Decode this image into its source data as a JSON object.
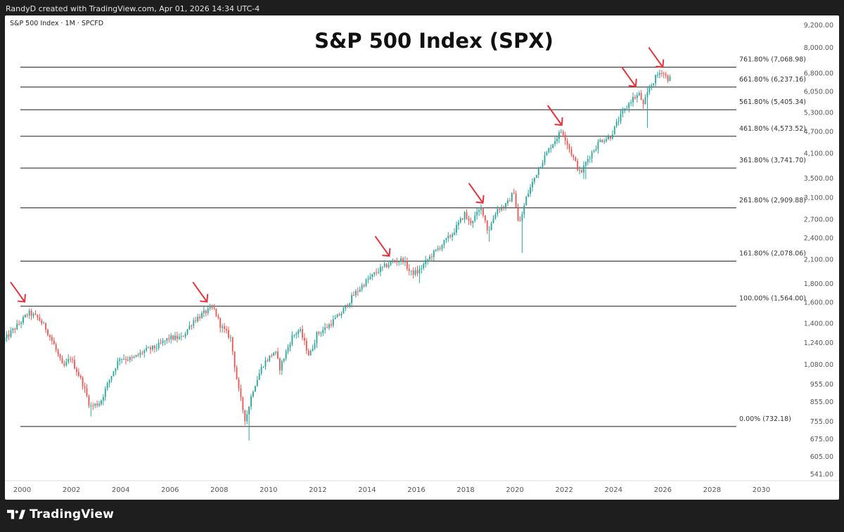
{
  "header": {
    "attribution": "RandyD created with TradingView.com, Apr 01, 2026 14:34 UTC-4"
  },
  "footer": {
    "brand": "TradingView",
    "logo_icon": "tradingview-logo-icon"
  },
  "colors": {
    "up": "#26a69a",
    "down": "#ef5350",
    "arrow": "#e8313a",
    "level_line": "#1a1a1a",
    "text": "#333333"
  },
  "chart_data": {
    "type": "candlestick",
    "title": "S&P 500 Index (SPX)",
    "symbol_legend": "S&P 500 Index · 1M · SPCFD",
    "scale": "log",
    "ylim": [
      520,
      9800
    ],
    "xlim": [
      1999.3,
      2031.3
    ],
    "y_ticks": [
      {
        "label": "9,200.00",
        "value": 9200
      },
      {
        "label": "8,000.00",
        "value": 8000
      },
      {
        "label": "6,800.00",
        "value": 6800
      },
      {
        "label": "6,050.00",
        "value": 6050
      },
      {
        "label": "5,300.00",
        "value": 5300
      },
      {
        "label": "4,700.00",
        "value": 4700
      },
      {
        "label": "4,100.00",
        "value": 4100
      },
      {
        "label": "3,500.00",
        "value": 3500
      },
      {
        "label": "3,100.00",
        "value": 3100
      },
      {
        "label": "2,700.00",
        "value": 2700
      },
      {
        "label": "2,400.00",
        "value": 2400
      },
      {
        "label": "2,100.00",
        "value": 2100
      },
      {
        "label": "1,800.00",
        "value": 1800
      },
      {
        "label": "1,600.00",
        "value": 1600
      },
      {
        "label": "1,400.00",
        "value": 1400
      },
      {
        "label": "1,240.00",
        "value": 1240
      },
      {
        "label": "1,080.00",
        "value": 1080
      },
      {
        "label": "955.00",
        "value": 955
      },
      {
        "label": "855.00",
        "value": 855
      },
      {
        "label": "755.00",
        "value": 755
      },
      {
        "label": "675.00",
        "value": 675
      },
      {
        "label": "605.00",
        "value": 605
      },
      {
        "label": "541.00",
        "value": 541
      }
    ],
    "x_ticks": [
      {
        "label": "2000",
        "value": 2000
      },
      {
        "label": "2002",
        "value": 2002
      },
      {
        "label": "2004",
        "value": 2004
      },
      {
        "label": "2006",
        "value": 2006
      },
      {
        "label": "2008",
        "value": 2008
      },
      {
        "label": "2010",
        "value": 2010
      },
      {
        "label": "2012",
        "value": 2012
      },
      {
        "label": "2014",
        "value": 2014
      },
      {
        "label": "2016",
        "value": 2016
      },
      {
        "label": "2018",
        "value": 2018
      },
      {
        "label": "2020",
        "value": 2020
      },
      {
        "label": "2022",
        "value": 2022
      },
      {
        "label": "2024",
        "value": 2024
      },
      {
        "label": "2026",
        "value": 2026
      },
      {
        "label": "2028",
        "value": 2028
      },
      {
        "label": "2030",
        "value": 2030
      }
    ],
    "fib_levels": [
      {
        "label": "761.80% (7,068.98)",
        "value": 7068.98
      },
      {
        "label": "661.80% (6,237.16)",
        "value": 6237.16
      },
      {
        "label": "561.80% (5,405.34)",
        "value": 5405.34
      },
      {
        "label": "461.80% (4,573.52)",
        "value": 4573.52
      },
      {
        "label": "361.80% (3,741.70)",
        "value": 3741.7
      },
      {
        "label": "261.80% (2,909.88)",
        "value": 2909.88
      },
      {
        "label": "161.80% (2,078.06)",
        "value": 2078.06
      },
      {
        "label": "100.00% (1,564.00)",
        "value": 1564.0
      },
      {
        "label": "0.00% (732.18)",
        "value": 732.18
      }
    ],
    "arrows": [
      {
        "year": 2000.1,
        "price": 1580
      },
      {
        "year": 2007.5,
        "price": 1580
      },
      {
        "year": 2014.9,
        "price": 2110
      },
      {
        "year": 2018.7,
        "price": 2950
      },
      {
        "year": 2021.9,
        "price": 4820
      },
      {
        "year": 2024.9,
        "price": 6150
      },
      {
        "year": 2026.0,
        "price": 6950
      }
    ],
    "series_anchors": [
      [
        1999.3,
        1260
      ],
      [
        1999.6,
        1330
      ],
      [
        2000.0,
        1420
      ],
      [
        2000.3,
        1500
      ],
      [
        2000.7,
        1450
      ],
      [
        2001.0,
        1360
      ],
      [
        2001.3,
        1240
      ],
      [
        2001.7,
        1060
      ],
      [
        2002.0,
        1130
      ],
      [
        2002.5,
        960
      ],
      [
        2002.8,
        830
      ],
      [
        2003.2,
        850
      ],
      [
        2003.6,
        990
      ],
      [
        2004.0,
        1130
      ],
      [
        2004.5,
        1120
      ],
      [
        2005.0,
        1180
      ],
      [
        2005.5,
        1210
      ],
      [
        2006.0,
        1280
      ],
      [
        2006.5,
        1280
      ],
      [
        2007.0,
        1430
      ],
      [
        2007.5,
        1510
      ],
      [
        2007.8,
        1550
      ],
      [
        2008.1,
        1380
      ],
      [
        2008.5,
        1280
      ],
      [
        2008.8,
        940
      ],
      [
        2009.1,
        760
      ],
      [
        2009.4,
        920
      ],
      [
        2009.8,
        1080
      ],
      [
        2010.3,
        1180
      ],
      [
        2010.5,
        1060
      ],
      [
        2011.0,
        1290
      ],
      [
        2011.3,
        1350
      ],
      [
        2011.7,
        1140
      ],
      [
        2012.0,
        1310
      ],
      [
        2012.4,
        1370
      ],
      [
        2013.0,
        1500
      ],
      [
        2013.5,
        1680
      ],
      [
        2014.0,
        1830
      ],
      [
        2014.5,
        1960
      ],
      [
        2015.0,
        2060
      ],
      [
        2015.5,
        2100
      ],
      [
        2015.8,
        1930
      ],
      [
        2016.1,
        1940
      ],
      [
        2016.5,
        2100
      ],
      [
        2017.0,
        2280
      ],
      [
        2017.5,
        2470
      ],
      [
        2018.0,
        2800
      ],
      [
        2018.2,
        2640
      ],
      [
        2018.7,
        2910
      ],
      [
        2018.95,
        2500
      ],
      [
        2019.3,
        2880
      ],
      [
        2019.7,
        2960
      ],
      [
        2020.0,
        3230
      ],
      [
        2020.2,
        2580
      ],
      [
        2020.5,
        3100
      ],
      [
        2021.0,
        3750
      ],
      [
        2021.5,
        4300
      ],
      [
        2021.95,
        4760
      ],
      [
        2022.3,
        4150
      ],
      [
        2022.7,
        3600
      ],
      [
        2023.0,
        3970
      ],
      [
        2023.5,
        4450
      ],
      [
        2023.9,
        4550
      ],
      [
        2024.3,
        5150
      ],
      [
        2024.8,
        5800
      ],
      [
        2025.1,
        5950
      ],
      [
        2025.25,
        5550
      ],
      [
        2025.5,
        6200
      ],
      [
        2025.8,
        6700
      ],
      [
        2026.0,
        6900
      ],
      [
        2026.25,
        6580
      ]
    ]
  }
}
